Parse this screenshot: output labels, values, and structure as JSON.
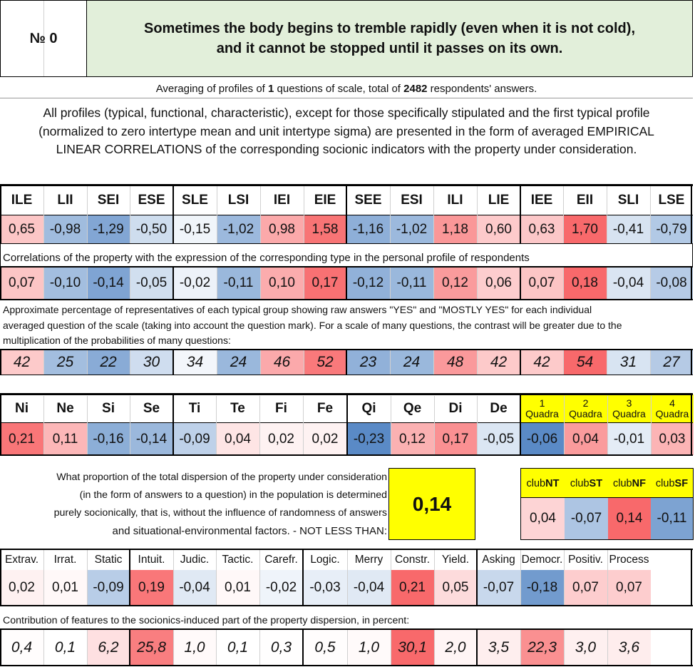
{
  "header": {
    "number_label": "№ 0",
    "question": "Sometimes the body begins to tremble rapidly (even when it is not cold),",
    "question_line2": "and it cannot be stopped until it passes on its own."
  },
  "averaging": {
    "prefix": "Averaging of profiles of ",
    "questions": "1",
    "middle": " questions of scale, total of ",
    "respondents": "2482",
    "suffix": " respondents' answers."
  },
  "description": [
    "All profiles (typical, functional, characteristic), except for those specifically stipulated and the first typical profile",
    "(normalized to zero intertype mean and unit intertype sigma) are presented in the form of averaged EMPIRICAL",
    "LINEAR CORRELATIONS of the corresponding socionic indicators with the property under consideration."
  ],
  "types": {
    "labels": [
      "ILE",
      "LII",
      "SEI",
      "ESE",
      "SLE",
      "LSI",
      "IEI",
      "EIE",
      "SEE",
      "ESI",
      "ILI",
      "LIE",
      "IEE",
      "EII",
      "SLI",
      "LSE"
    ],
    "profile": [
      "0,65",
      "-0,98",
      "-1,29",
      "-0,50",
      "-0,15",
      "-1,02",
      "0,98",
      "1,58",
      "-1,16",
      "-1,02",
      "1,18",
      "0,60",
      "0,63",
      "1,70",
      "-0,41",
      "-0,79"
    ],
    "profile_num": [
      0.65,
      -0.98,
      -1.29,
      -0.5,
      -0.15,
      -1.02,
      0.98,
      1.58,
      -1.16,
      -1.02,
      1.18,
      0.6,
      0.63,
      1.7,
      -0.41,
      -0.79
    ],
    "corr_caption": "Correlations of the property with the expression of the corresponding type in the personal profile of respondents",
    "corr": [
      "0,07",
      "-0,10",
      "-0,14",
      "-0,05",
      "-0,02",
      "-0,11",
      "0,10",
      "0,17",
      "-0,12",
      "-0,11",
      "0,12",
      "0,06",
      "0,07",
      "0,18",
      "-0,04",
      "-0,08"
    ],
    "corr_num": [
      0.07,
      -0.1,
      -0.14,
      -0.05,
      -0.02,
      -0.11,
      0.1,
      0.17,
      -0.12,
      -0.11,
      0.12,
      0.06,
      0.07,
      0.18,
      -0.04,
      -0.08
    ],
    "pct_caption": [
      "Approximate percentage of representatives of each typical group showing raw answers \"YES\" and \"MOSTLY YES\" for each individual",
      "averaged question of the scale (taking into account the question mark). For a scale of many questions, the contrast will be greater due to the",
      "multiplication of the probabilities of many questions:"
    ],
    "pct": [
      "42",
      "25",
      "22",
      "30",
      "34",
      "24",
      "46",
      "52",
      "23",
      "24",
      "48",
      "42",
      "42",
      "54",
      "31",
      "27"
    ],
    "pct_num": [
      42,
      25,
      22,
      30,
      34,
      24,
      46,
      52,
      23,
      24,
      48,
      42,
      42,
      54,
      31,
      27
    ]
  },
  "functions": {
    "labels": [
      "Ni",
      "Ne",
      "Si",
      "Se",
      "Ti",
      "Te",
      "Fi",
      "Fe",
      "Qi",
      "Qe",
      "Di",
      "De"
    ],
    "values": [
      "0,21",
      "0,11",
      "-0,16",
      "-0,14",
      "-0,09",
      "0,04",
      "0,02",
      "0,02",
      "-0,23",
      "0,12",
      "0,17",
      "-0,05"
    ],
    "values_num": [
      0.21,
      0.11,
      -0.16,
      -0.14,
      -0.09,
      0.04,
      0.02,
      0.02,
      -0.23,
      0.12,
      0.17,
      -0.05
    ]
  },
  "quadras": {
    "numbers": [
      "1",
      "2",
      "3",
      "4"
    ],
    "word": "Quadra",
    "values": [
      "-0,06",
      "0,04",
      "-0,01",
      "0,03"
    ],
    "values_num": [
      -0.06,
      0.04,
      -0.01,
      0.03
    ]
  },
  "dispersion": {
    "text": [
      "What proportion of the total dispersion of the property under consideration",
      "(in the form of answers to a question) in the population is determined",
      "purely socionically, that is, without the influence of randomness of answers",
      "and situational-environmental factors. - NOT LESS THAN:"
    ],
    "value": "0,14"
  },
  "clubs": {
    "prefix": "club",
    "names": [
      "NT",
      "ST",
      "NF",
      "SF"
    ],
    "values": [
      "0,04",
      "-0,07",
      "0,14",
      "-0,11"
    ],
    "values_num": [
      0.04,
      -0.07,
      0.14,
      -0.11
    ]
  },
  "traits": {
    "labels": [
      "Extrav.",
      "Irrat.",
      "Static",
      "Intuit.",
      "Judic.",
      "Tactic.",
      "Carefr.",
      "Logic.",
      "Merry",
      "Constr.",
      "Yield.",
      "Asking",
      "Democr.",
      "Positiv.",
      "Process"
    ],
    "values": [
      "0,02",
      "0,01",
      "-0,09",
      "0,19",
      "-0,04",
      "0,01",
      "-0,02",
      "-0,03",
      "-0,04",
      "0,21",
      "0,05",
      "-0,07",
      "-0,18",
      "0,07",
      "0,07"
    ],
    "values_num": [
      0.02,
      0.01,
      -0.09,
      0.19,
      -0.04,
      0.01,
      -0.02,
      -0.03,
      -0.04,
      0.21,
      0.05,
      -0.07,
      -0.18,
      0.07,
      0.07
    ],
    "contrib_caption": "Contribution of features to the socionics-induced part of the property dispersion, in percent:",
    "contrib": [
      "0,4",
      "0,1",
      "6,2",
      "25,8",
      "1,0",
      "0,1",
      "0,3",
      "0,5",
      "1,0",
      "30,1",
      "2,0",
      "3,5",
      "22,3",
      "3,0",
      "3,6"
    ],
    "contrib_num": [
      0.4,
      0.1,
      6.2,
      25.8,
      1.0,
      0.1,
      0.3,
      0.5,
      1.0,
      30.1,
      2.0,
      3.5,
      22.3,
      3.0,
      3.6
    ]
  },
  "colors": {
    "header_bg": "#e2efda",
    "highlight": "#ffff00",
    "positive": "#f8696b",
    "negative": "#5a8ac6"
  }
}
